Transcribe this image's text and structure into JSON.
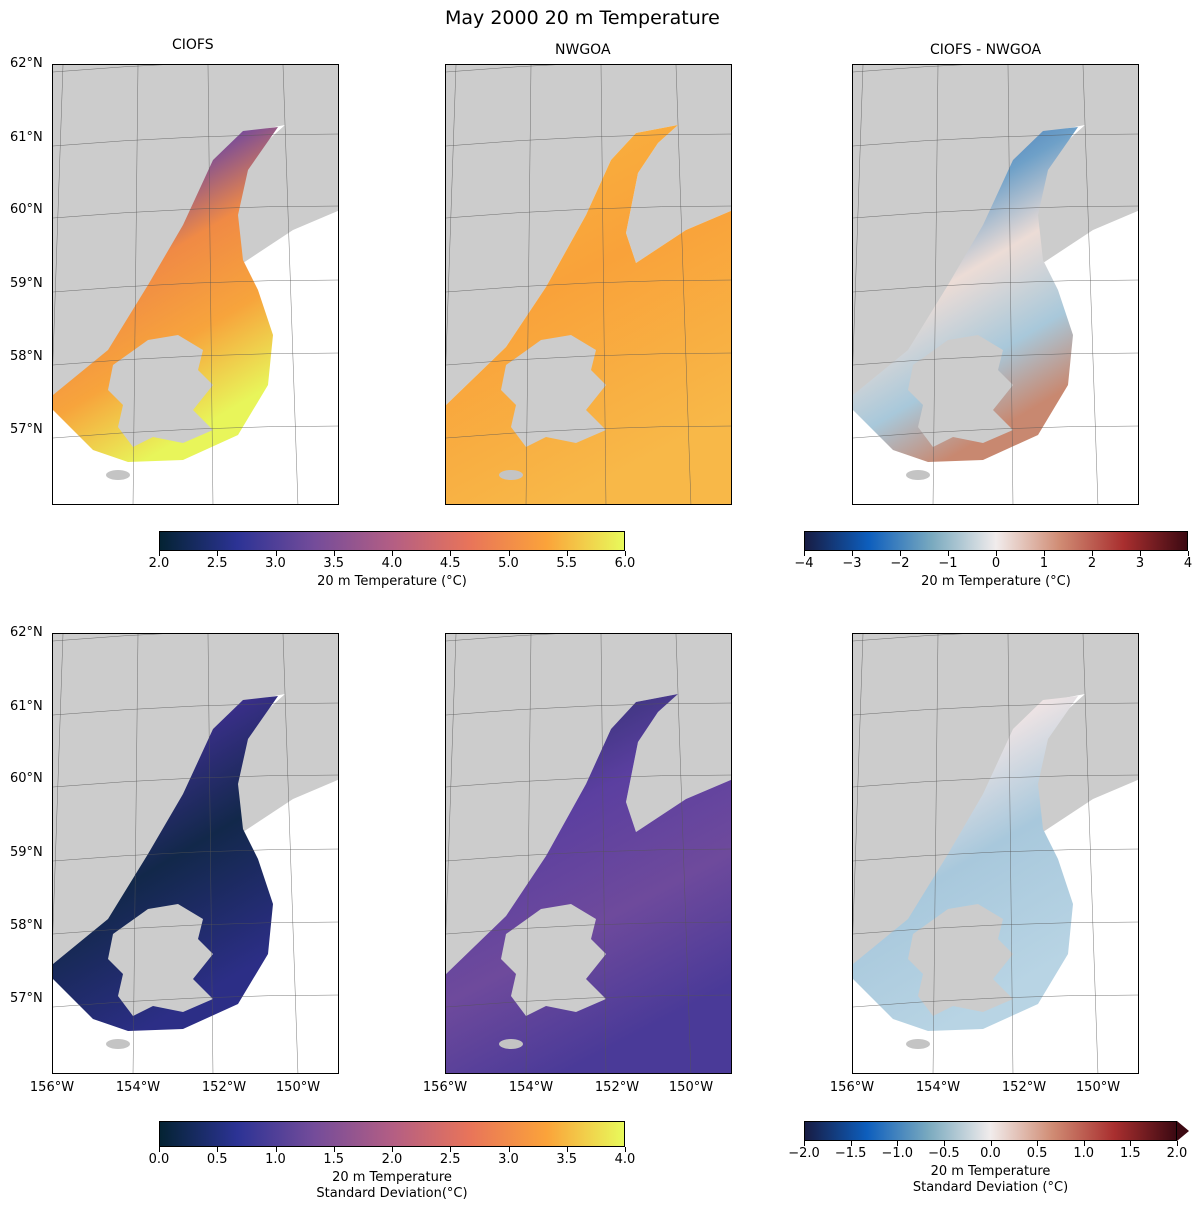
{
  "figure_title": "May 2000 20 m Temperature",
  "chart_data": [
    {
      "type": "heatmap",
      "panel": "top-left",
      "title": "CIOFS",
      "variable": "20 m Temperature",
      "colormap": "thermal",
      "clim": [
        2.0,
        6.0
      ]
    },
    {
      "type": "heatmap",
      "panel": "top-middle",
      "title": "NWGOA",
      "variable": "20 m Temperature",
      "colormap": "thermal",
      "clim": [
        2.0,
        6.0
      ]
    },
    {
      "type": "heatmap",
      "panel": "top-right",
      "title": "CIOFS - NWGOA",
      "variable": "20 m Temperature difference",
      "colormap": "balance",
      "clim": [
        -4,
        4
      ]
    },
    {
      "type": "heatmap",
      "panel": "bottom-left",
      "title": "",
      "variable": "20 m Temperature Standard Deviation",
      "colormap": "thermal",
      "clim": [
        0.0,
        4.0
      ]
    },
    {
      "type": "heatmap",
      "panel": "bottom-middle",
      "title": "",
      "variable": "20 m Temperature Standard Deviation",
      "colormap": "thermal",
      "clim": [
        0.0,
        4.0
      ]
    },
    {
      "type": "heatmap",
      "panel": "bottom-right",
      "title": "",
      "variable": "20 m Temperature Standard Deviation difference",
      "colormap": "balance",
      "clim": [
        -2.0,
        2.0
      ],
      "extend": "max"
    }
  ],
  "panel_titles": [
    "CIOFS",
    "NWGOA",
    "CIOFS - NWGOA"
  ],
  "lat_labels": [
    "62°N",
    "61°N",
    "60°N",
    "59°N",
    "58°N",
    "57°N"
  ],
  "lon_labels": [
    "156°W",
    "154°W",
    "152°W",
    "150°W"
  ],
  "colorbars": {
    "temp": {
      "ticks": [
        "2.0",
        "2.5",
        "3.0",
        "3.5",
        "4.0",
        "4.5",
        "5.0",
        "5.5",
        "6.0"
      ],
      "label": "20 m Temperature (°C)"
    },
    "diff": {
      "ticks": [
        "−4",
        "−3",
        "−2",
        "−1",
        "0",
        "1",
        "2",
        "3",
        "4"
      ],
      "label": "20 m Temperature (°C)"
    },
    "std": {
      "ticks": [
        "0.0",
        "0.5",
        "1.0",
        "1.5",
        "2.0",
        "2.5",
        "3.0",
        "3.5",
        "4.0"
      ],
      "label1": "20 m Temperature",
      "label2": "Standard Deviation(°C)"
    },
    "stddiff": {
      "ticks": [
        "−2.0",
        "−1.5",
        "−1.0",
        "−0.5",
        "0.0",
        "0.5",
        "1.0",
        "1.5",
        "2.0"
      ],
      "label1": "20 m Temperature",
      "label2": "Standard Deviation (°C)"
    }
  },
  "colors": {
    "land": "#cccccc",
    "thermal": [
      "#042333",
      "#2c3395",
      "#744c9a",
      "#b35e84",
      "#e8745a",
      "#fba33a",
      "#e8fa5b"
    ],
    "balance": [
      "#181c43",
      "#0d5ebd",
      "#7aaabf",
      "#f1ecec",
      "#d08c74",
      "#a92f2f",
      "#3c0912"
    ]
  }
}
